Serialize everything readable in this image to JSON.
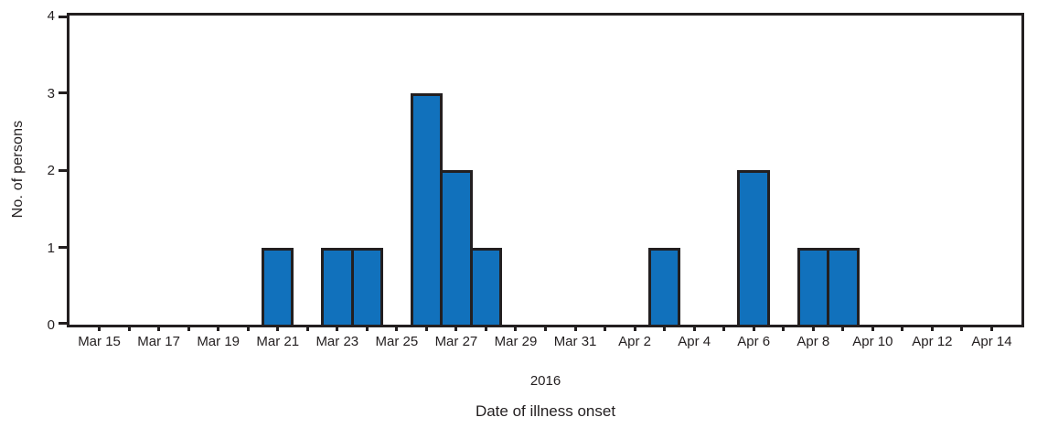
{
  "chart_data": {
    "type": "bar",
    "title": "",
    "ylabel": "No. of persons",
    "xlabel": "Date of illness onset",
    "year_label": "2016",
    "ylim": [
      0,
      4
    ],
    "yticks": [
      0,
      1,
      2,
      3,
      4
    ],
    "grid": false,
    "legend": "none",
    "x_edge_padding_days": 1,
    "tick_label_every": 2,
    "categories": [
      "Mar 15",
      "Mar 16",
      "Mar 17",
      "Mar 18",
      "Mar 19",
      "Mar 20",
      "Mar 21",
      "Mar 22",
      "Mar 23",
      "Mar 24",
      "Mar 25",
      "Mar 26",
      "Mar 27",
      "Mar 28",
      "Mar 29",
      "Mar 30",
      "Mar 31",
      "Apr 1",
      "Apr 2",
      "Apr 3",
      "Apr 4",
      "Apr 5",
      "Apr 6",
      "Apr 7",
      "Apr 8",
      "Apr 9",
      "Apr 10",
      "Apr 11",
      "Apr 12",
      "Apr 13",
      "Apr 14"
    ],
    "bars": [
      {
        "date": "Mar 21",
        "value": 1
      },
      {
        "date": "Mar 23",
        "value": 1
      },
      {
        "date": "Mar 24",
        "value": 1
      },
      {
        "date": "Mar 26",
        "value": 3
      },
      {
        "date": "Mar 27",
        "value": 2
      },
      {
        "date": "Mar 28",
        "value": 1
      },
      {
        "date": "Apr 3",
        "value": 1
      },
      {
        "date": "Apr 6",
        "value": 2
      },
      {
        "date": "Apr 8",
        "value": 1
      },
      {
        "date": "Apr 9",
        "value": 1
      }
    ],
    "colors": {
      "bar_fill": "#1171bc",
      "bar_stroke": "#231f20",
      "axis": "#231f20",
      "text": "#231f20",
      "background": "#ffffff"
    }
  }
}
